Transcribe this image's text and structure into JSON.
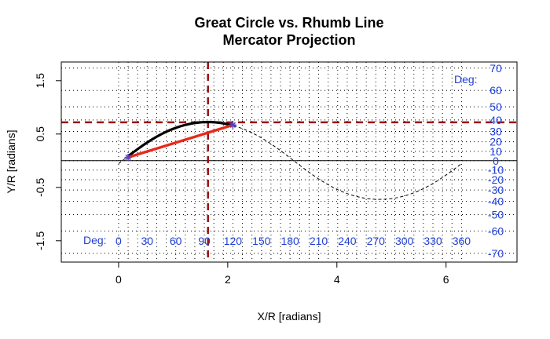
{
  "chart_data": {
    "type": "line",
    "title": [
      "Great Circle vs. Rhumb Line",
      "Mercator Projection"
    ],
    "xlabel": "X/R [radians]",
    "ylabel": "Y/R [radians]",
    "xlim": [
      -1.05,
      7.3
    ],
    "ylim": [
      -1.9,
      1.85
    ],
    "x_ticks": [
      0,
      2,
      4,
      6
    ],
    "y_ticks": [
      -1.5,
      -0.5,
      0.5,
      1.5
    ],
    "grid": "dotted",
    "colors": {
      "great_circle": "#000000",
      "rhumb_line": "#e8291a",
      "guide": "#9b1010",
      "degree_labels": "#1f3fd6",
      "endpoints": "#5a3fc0"
    },
    "deg_x_label": "Deg:",
    "deg_x_ticks": [
      "0",
      "30",
      "60",
      "90",
      "120",
      "150",
      "180",
      "210",
      "240",
      "270",
      "300",
      "330",
      "360"
    ],
    "deg_y_label": "Deg:",
    "deg_y_ticks": [
      "70",
      "60",
      "50",
      "40",
      "30",
      "20",
      "10",
      "0",
      "-10",
      "-20",
      "-30",
      "-40",
      "-50",
      "-60",
      "-70"
    ],
    "deg_y_values": [
      70,
      60,
      50,
      40,
      30,
      20,
      10,
      0,
      -10,
      -20,
      -30,
      -40,
      -50,
      -60,
      -70
    ],
    "start_point": [
      0.175,
      0.063
    ],
    "end_point": [
      2.094,
      0.669
    ],
    "vertex": [
      1.638,
      0.719
    ],
    "great_circle_inclination_deg": 38.3,
    "great_circle_node_lon": 0.068,
    "series": [
      {
        "style": "great-circle",
        "values": [
          [
            0.175,
            0.063
          ],
          [
            0.4,
            0.24
          ],
          [
            0.7,
            0.45
          ],
          [
            1.0,
            0.6
          ],
          [
            1.3,
            0.69
          ],
          [
            1.638,
            0.719
          ],
          [
            1.9,
            0.7
          ],
          [
            2.094,
            0.669
          ]
        ]
      },
      {
        "style": "rhumb-line",
        "values": [
          [
            0.175,
            0.063
          ],
          [
            2.094,
            0.669
          ]
        ]
      }
    ]
  }
}
